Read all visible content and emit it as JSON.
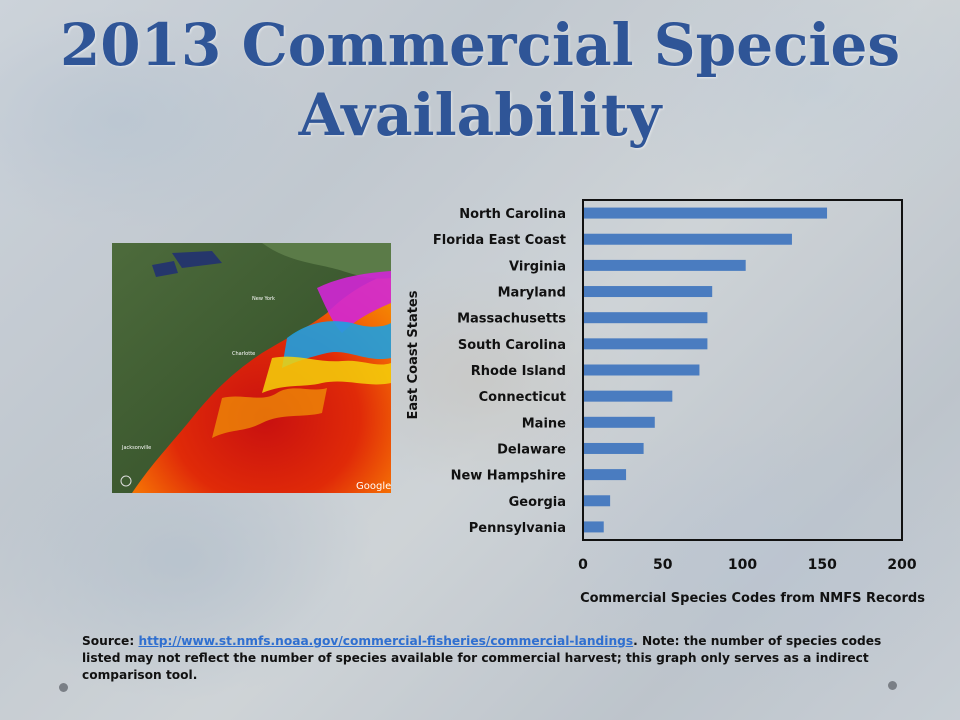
{
  "title": {
    "line1": "2013 Commercial Species",
    "line2": "Availability"
  },
  "map": {
    "labels": [
      "Charlotte",
      "Jacksonville",
      "New York",
      "Google"
    ]
  },
  "chart_data": {
    "type": "bar",
    "orientation": "horizontal",
    "categories": [
      "North Carolina",
      "Florida East Coast",
      "Virginia",
      "Maryland",
      "Massachusetts",
      "South Carolina",
      "Rhode Island",
      "Connecticut",
      "Maine",
      "Delaware",
      "New Hampshire",
      "Georgia",
      "Pennsylvania"
    ],
    "values": [
      153,
      131,
      102,
      81,
      78,
      78,
      73,
      56,
      45,
      38,
      27,
      17,
      13
    ],
    "xlabel": "Commercial Species Codes from NMFS Records",
    "ylabel": "East Coast States",
    "xlim": [
      0,
      200
    ],
    "xticks": [
      0,
      50,
      100,
      150,
      200
    ],
    "bar_color": "#4a7cc0",
    "grid": false
  },
  "source": {
    "prefix": "Source: ",
    "link": "http://www.st.nmfs.noaa.gov/commercial-fisheries/commercial-landings",
    "note": ". Note: the number of species codes listed may not reflect the number of species available for commercial harvest; this graph only serves  as a indirect comparison tool."
  }
}
